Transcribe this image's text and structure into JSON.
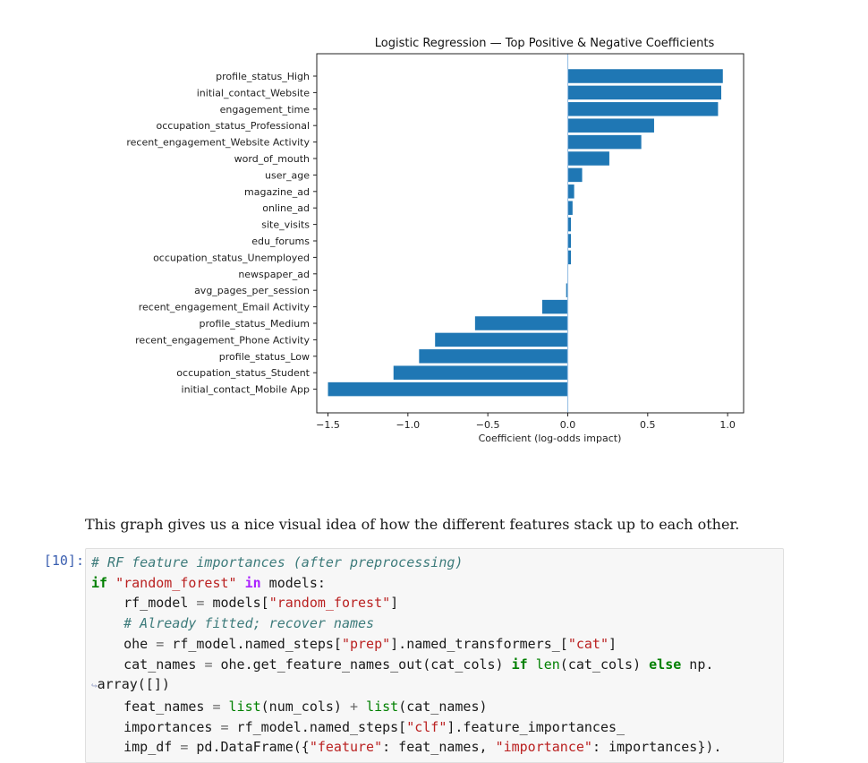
{
  "chart_data": {
    "type": "bar",
    "orientation": "horizontal",
    "title": "Logistic Regression — Top Positive & Negative Coefficients",
    "xlabel": "Coefficient (log-odds impact)",
    "ylabel": "",
    "xlim": [
      -1.57,
      1.1
    ],
    "xticks": [
      -1.5,
      -1.0,
      -0.5,
      0.0,
      0.5,
      1.0
    ],
    "xtick_labels": [
      "−1.5",
      "−1.0",
      "−0.5",
      "0.0",
      "0.5",
      "1.0"
    ],
    "zero_line": true,
    "grid": false,
    "bar_color": "#1f77b4",
    "zero_line_color": "#9ec3e6",
    "categories": [
      "profile_status_High",
      "initial_contact_Website",
      "engagement_time",
      "occupation_status_Professional",
      "recent_engagement_Website Activity",
      "word_of_mouth",
      "user_age",
      "magazine_ad",
      "online_ad",
      "site_visits",
      "edu_forums",
      "occupation_status_Unemployed",
      "newspaper_ad",
      "avg_pages_per_session",
      "recent_engagement_Email Activity",
      "profile_status_Medium",
      "recent_engagement_Phone Activity",
      "profile_status_Low",
      "occupation_status_Student",
      "initial_contact_Mobile App"
    ],
    "values": [
      0.97,
      0.96,
      0.94,
      0.54,
      0.46,
      0.26,
      0.09,
      0.04,
      0.03,
      0.02,
      0.02,
      0.02,
      0.0,
      -0.01,
      -0.16,
      -0.58,
      -0.83,
      -0.93,
      -1.09,
      -1.5
    ]
  },
  "notebook": {
    "markdown_text": "This graph gives us a nice visual idea of how the different features stack up to each other.",
    "cell_prompt": "[10]:",
    "code_lines": [
      "# RF feature importances (after preprocessing)",
      "if \"random_forest\" in models:",
      "    rf_model = models[\"random_forest\"]",
      "    # Already fitted; recover names",
      "    ohe = rf_model.named_steps[\"prep\"].named_transformers_[\"cat\"]",
      "    cat_names = ohe.get_feature_names_out(cat_cols) if len(cat_cols) else np.",
      "↪array([])",
      "    feat_names = list(num_cols) + list(cat_names)",
      "    importances = rf_model.named_steps[\"clf\"].feature_importances_",
      "    imp_df = pd.DataFrame({\"feature\": feat_names, \"importance\": importances})."
    ]
  }
}
